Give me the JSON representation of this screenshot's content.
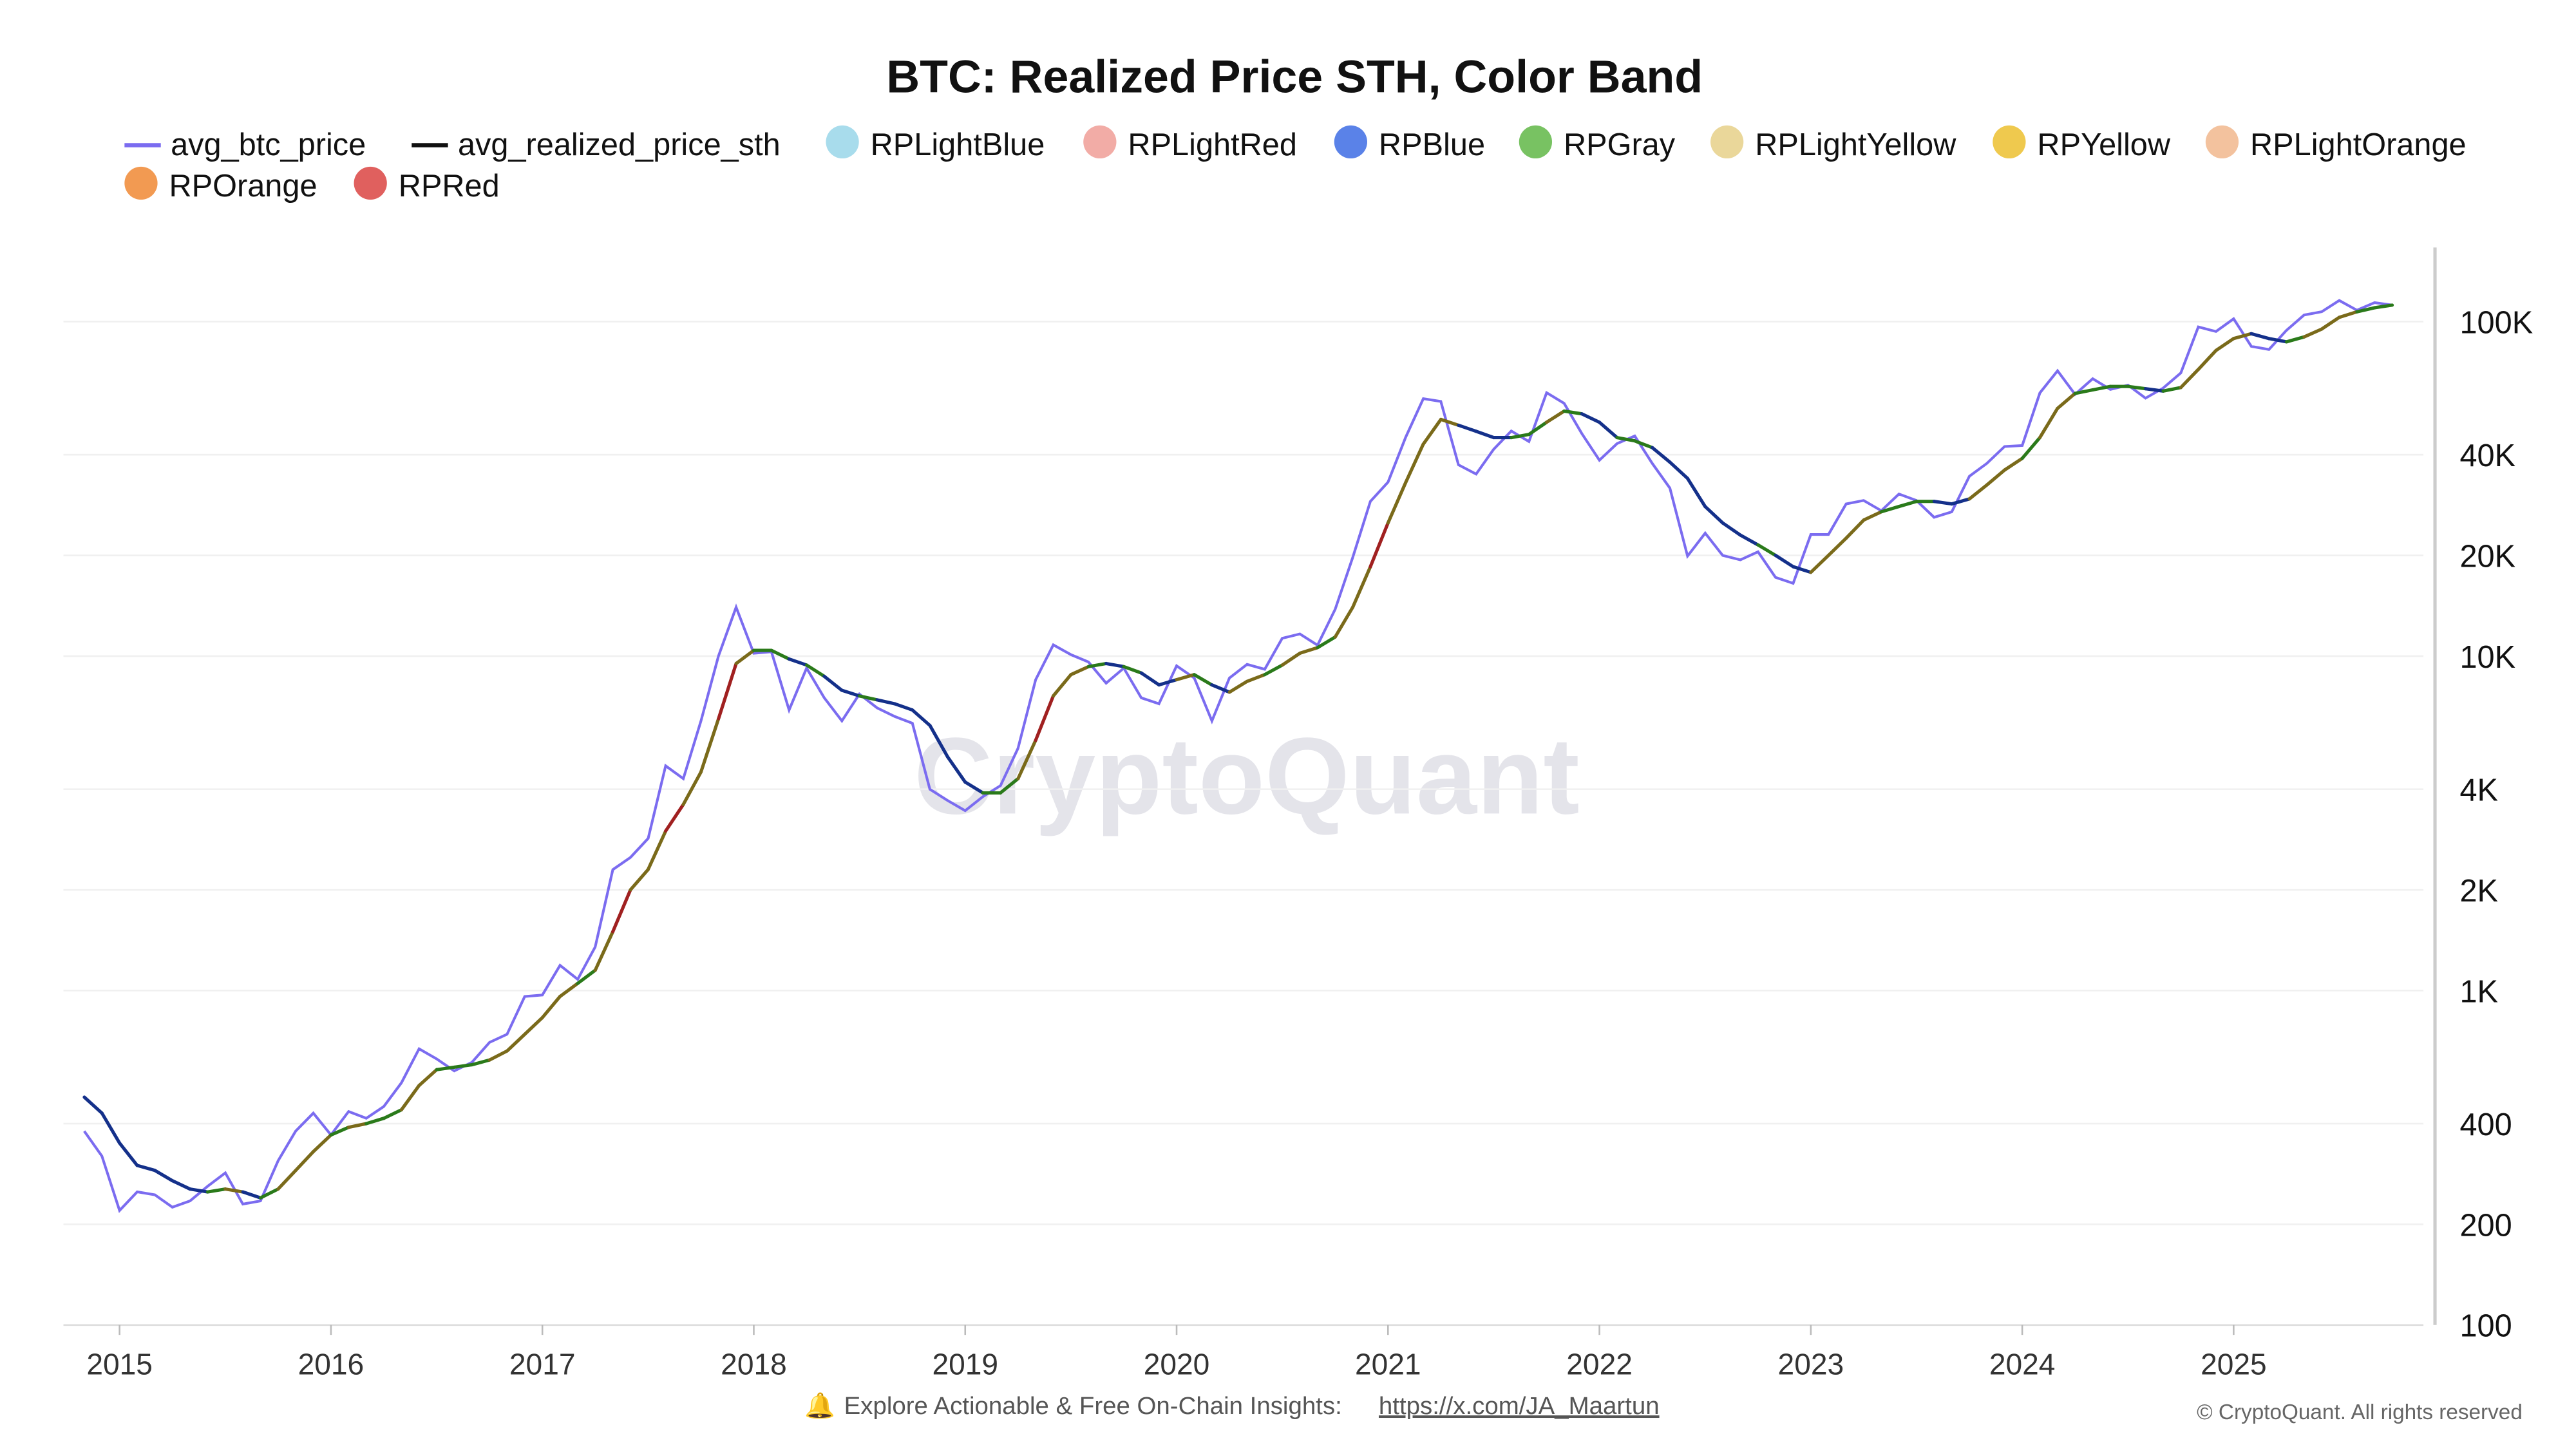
{
  "chart_data": {
    "type": "line",
    "title": "BTC: Realized Price STH, Color Band",
    "yscale": "log",
    "ylim": [
      100,
      130000
    ],
    "xlim": [
      "2014-11",
      "2025-10"
    ],
    "grid": "horizontal",
    "legend_position": "top",
    "y_ticks": [
      100,
      200,
      400,
      1000,
      2000,
      4000,
      10000,
      20000,
      40000,
      100000
    ],
    "y_tick_labels": [
      "100",
      "200",
      "400",
      "1K",
      "2K",
      "4K",
      "10K",
      "20K",
      "40K",
      "100K"
    ],
    "x_tick_labels": [
      "2015",
      "2016",
      "2017",
      "2018",
      "2019",
      "2020",
      "2021",
      "2022",
      "2023",
      "2024",
      "2025"
    ],
    "legend": [
      {
        "name": "avg_btc_price",
        "kind": "line",
        "color": "#7b6cf0"
      },
      {
        "name": "avg_realized_price_sth",
        "kind": "line",
        "color": "#111111"
      },
      {
        "name": "RPLightBlue",
        "kind": "dot",
        "color": "#a8dcec"
      },
      {
        "name": "RPLightRed",
        "kind": "dot",
        "color": "#f2aca6"
      },
      {
        "name": "RPBlue",
        "kind": "dot",
        "color": "#5a82e8"
      },
      {
        "name": "RPGray",
        "kind": "dot",
        "color": "#78c262"
      },
      {
        "name": "RPLightYellow",
        "kind": "dot",
        "color": "#ead79a"
      },
      {
        "name": "RPYellow",
        "kind": "dot",
        "color": "#efc94e"
      },
      {
        "name": "RPLightOrange",
        "kind": "dot",
        "color": "#f3c29e"
      },
      {
        "name": "RPOrange",
        "kind": "dot",
        "color": "#f29a52"
      },
      {
        "name": "RPRed",
        "kind": "dot",
        "color": "#e0605e"
      }
    ],
    "start": "2014-11",
    "frequency": "monthly",
    "series": [
      {
        "name": "avg_btc_price",
        "values": [
          380,
          320,
          220,
          250,
          245,
          225,
          235,
          260,
          285,
          230,
          235,
          310,
          380,
          430,
          370,
          435,
          415,
          450,
          530,
          670,
          625,
          575,
          610,
          700,
          740,
          960,
          970,
          1190,
          1080,
          1350,
          2300,
          2500,
          2850,
          4700,
          4300,
          6400,
          10000,
          14000,
          10200,
          10300,
          6900,
          9200,
          7500,
          6400,
          7700,
          7000,
          6600,
          6300,
          4000,
          3700,
          3450,
          3800,
          4100,
          5300,
          8500,
          10800,
          10100,
          9600,
          8300,
          9200,
          7500,
          7200,
          9350,
          8600,
          6400,
          8600,
          9450,
          9130,
          11300,
          11650,
          10780,
          13800,
          19700,
          29000,
          33100,
          45100,
          58800,
          57700,
          37300,
          35000,
          41500,
          47100,
          43800,
          61300,
          57000,
          46300,
          38500,
          43200,
          45500,
          37700,
          31800,
          19900,
          23300,
          20000,
          19400,
          20500,
          17200,
          16500,
          23100,
          23100,
          28500,
          29200,
          27200,
          30500,
          29200,
          26000,
          27000,
          34500,
          37700,
          42300,
          42600,
          61200,
          71300,
          60600,
          67500,
          62700,
          64600,
          59000,
          63300,
          70200,
          96400,
          93400,
          102000,
          84300,
          82500,
          94200,
          104600,
          107100,
          115700,
          108200,
          114000,
          112000
        ]
      },
      {
        "name": "avg_realized_price_sth",
        "values": [
          480,
          430,
          350,
          300,
          290,
          270,
          255,
          250,
          255,
          250,
          240,
          255,
          290,
          330,
          370,
          390,
          400,
          415,
          440,
          520,
          580,
          590,
          600,
          620,
          660,
          740,
          830,
          960,
          1050,
          1150,
          1500,
          2000,
          2300,
          3000,
          3600,
          4500,
          6500,
          9500,
          10400,
          10400,
          9800,
          9400,
          8700,
          7900,
          7600,
          7400,
          7200,
          6900,
          6200,
          5000,
          4200,
          3900,
          3900,
          4300,
          5600,
          7600,
          8800,
          9300,
          9500,
          9300,
          8900,
          8200,
          8500,
          8800,
          8200,
          7800,
          8400,
          8800,
          9400,
          10200,
          10600,
          11400,
          14000,
          18500,
          25000,
          33000,
          43000,
          51000,
          49000,
          47000,
          45000,
          45000,
          46000,
          50000,
          54000,
          53000,
          50000,
          45000,
          44000,
          42000,
          38000,
          34000,
          28000,
          25000,
          23000,
          21500,
          20000,
          18500,
          17800,
          20000,
          22500,
          25500,
          27000,
          28000,
          29000,
          29000,
          28500,
          29500,
          32500,
          36000,
          39000,
          45000,
          55000,
          61000,
          62500,
          64000,
          64000,
          63000,
          62000,
          63500,
          72000,
          82000,
          89000,
          92000,
          89000,
          87000,
          90000,
          95000,
          103000,
          107000,
          110000,
          112000
        ]
      }
    ]
  },
  "watermark": "CryptoQuant",
  "footer": {
    "icon": "bell-icon",
    "text": "Explore Actionable & Free On-Chain Insights:",
    "link": "https://x.com/JA_Maartun",
    "copyright": "© CryptoQuant. All rights reserved"
  }
}
